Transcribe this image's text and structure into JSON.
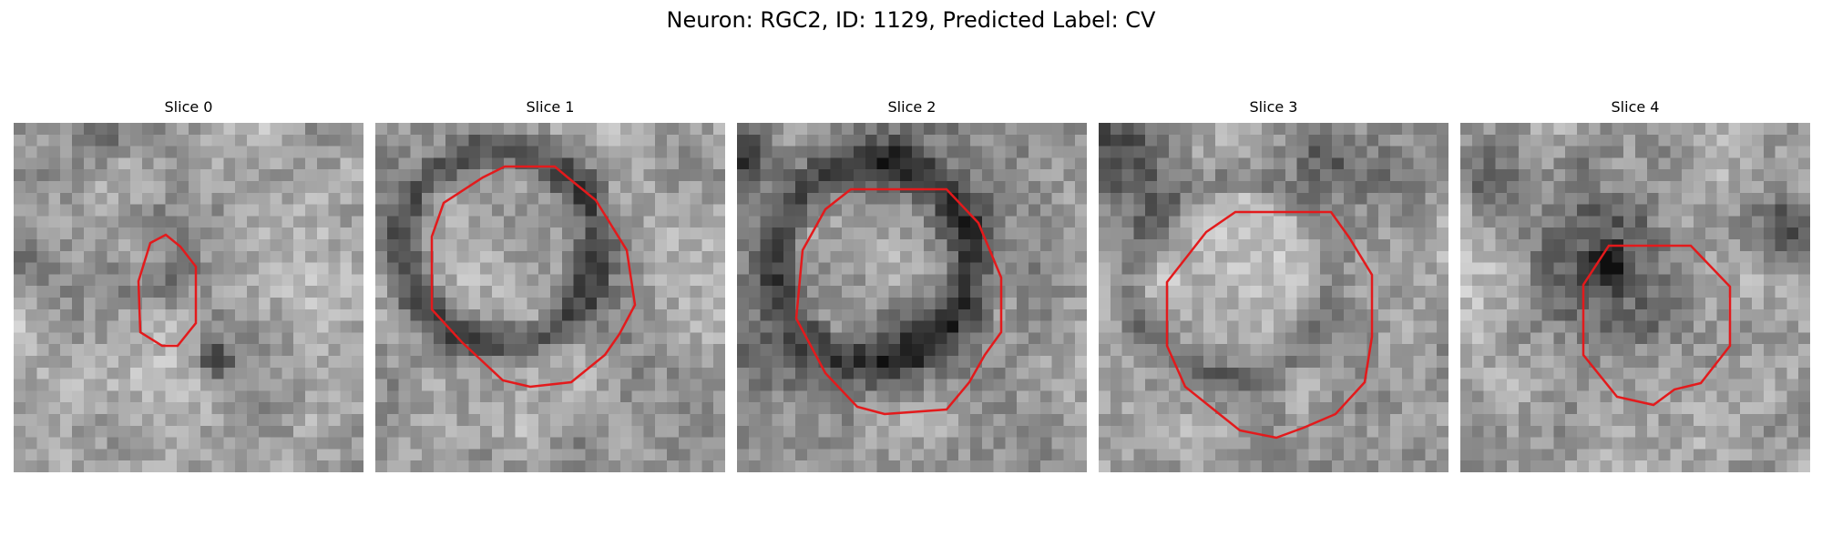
{
  "title": "Neuron: RGC2, ID: 1129, Predicted Label: CV",
  "contour_color": "#e31a1c",
  "panels": [
    {
      "label": "Slice 0"
    },
    {
      "label": "Slice 1"
    },
    {
      "label": "Slice 2"
    },
    {
      "label": "Slice 3"
    },
    {
      "label": "Slice 4"
    }
  ]
}
